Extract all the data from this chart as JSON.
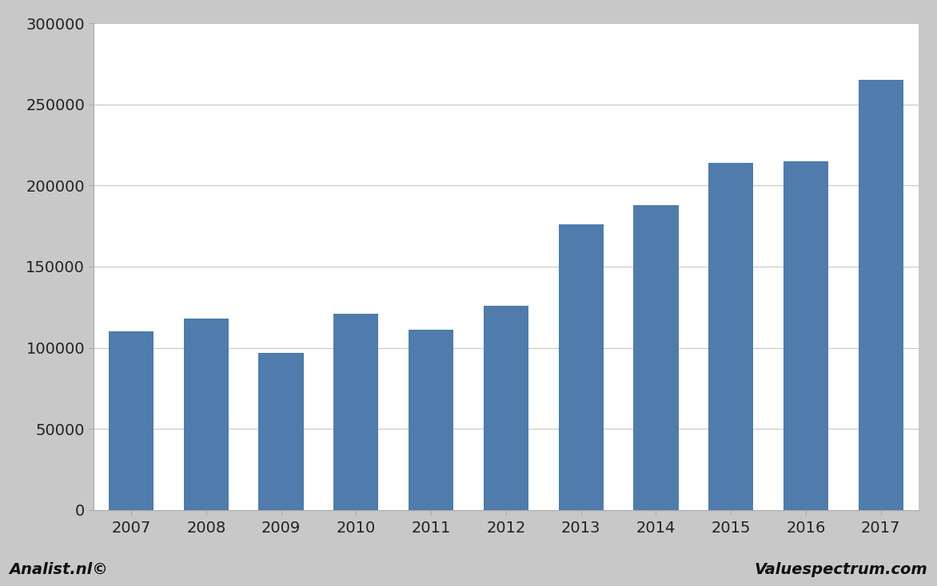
{
  "years": [
    2007,
    2008,
    2009,
    2010,
    2011,
    2012,
    2013,
    2014,
    2015,
    2016,
    2017
  ],
  "values": [
    110000,
    118000,
    97000,
    121000,
    111000,
    126000,
    176000,
    188000,
    214000,
    215000,
    265000
  ],
  "bar_color": "#4f7cac",
  "plot_bg_color": "#ffffff",
  "outer_bg_color": "#c8c8c8",
  "ylim": [
    0,
    300000
  ],
  "yticks": [
    0,
    50000,
    100000,
    150000,
    200000,
    250000,
    300000
  ],
  "grid_color": "#c8c8c8",
  "footer_left": "Analist.nl©",
  "footer_right": "Valuespectrum.com",
  "footer_fontsize": 14,
  "tick_fontsize": 14,
  "bar_width": 0.6
}
